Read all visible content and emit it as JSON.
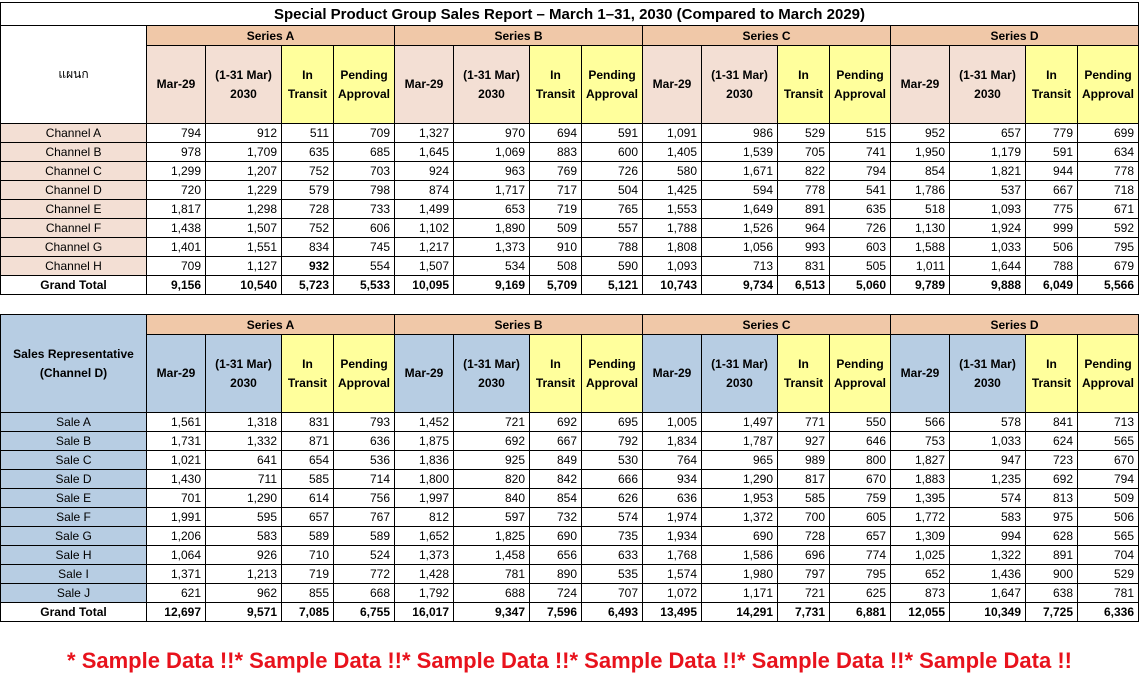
{
  "title": "Special Product Group Sales Report – March 1–31, 2030 (Compared to March 2029)",
  "series": [
    "Series A",
    "Series B",
    "Series C",
    "Series D"
  ],
  "sub_headers": [
    "Mar-29",
    "(1-31 Mar) 2030",
    "In Transit",
    "Pending Approval"
  ],
  "table1": {
    "corner_label": "แผนก",
    "rows": [
      {
        "label": "Channel A",
        "values": [
          "794",
          "912",
          "511",
          "709",
          "1,327",
          "970",
          "694",
          "591",
          "1,091",
          "986",
          "529",
          "515",
          "952",
          "657",
          "779",
          "699"
        ]
      },
      {
        "label": "Channel B",
        "values": [
          "978",
          "1,709",
          "635",
          "685",
          "1,645",
          "1,069",
          "883",
          "600",
          "1,405",
          "1,539",
          "705",
          "741",
          "1,950",
          "1,179",
          "591",
          "634"
        ]
      },
      {
        "label": "Channel C",
        "values": [
          "1,299",
          "1,207",
          "752",
          "703",
          "924",
          "963",
          "769",
          "726",
          "580",
          "1,671",
          "822",
          "794",
          "854",
          "1,821",
          "944",
          "778"
        ]
      },
      {
        "label": "Channel D",
        "values": [
          "720",
          "1,229",
          "579",
          "798",
          "874",
          "1,717",
          "717",
          "504",
          "1,425",
          "594",
          "778",
          "541",
          "1,786",
          "537",
          "667",
          "718"
        ]
      },
      {
        "label": "Channel E",
        "values": [
          "1,817",
          "1,298",
          "728",
          "733",
          "1,499",
          "653",
          "719",
          "765",
          "1,553",
          "1,649",
          "891",
          "635",
          "518",
          "1,093",
          "775",
          "671"
        ]
      },
      {
        "label": "Channel F",
        "values": [
          "1,438",
          "1,507",
          "752",
          "606",
          "1,102",
          "1,890",
          "509",
          "557",
          "1,788",
          "1,526",
          "964",
          "726",
          "1,130",
          "1,924",
          "999",
          "592"
        ]
      },
      {
        "label": "Channel G",
        "values": [
          "1,401",
          "1,551",
          "834",
          "745",
          "1,217",
          "1,373",
          "910",
          "788",
          "1,808",
          "1,056",
          "993",
          "603",
          "1,588",
          "1,033",
          "506",
          "795"
        ]
      },
      {
        "label": "Channel H",
        "values": [
          "709",
          "1,127",
          "932",
          "554",
          "1,507",
          "534",
          "508",
          "590",
          "1,093",
          "713",
          "831",
          "505",
          "1,011",
          "1,644",
          "788",
          "679"
        ]
      }
    ],
    "total": {
      "label": "Grand Total",
      "values": [
        "9,156",
        "10,540",
        "5,723",
        "5,533",
        "10,095",
        "9,169",
        "5,709",
        "5,121",
        "10,743",
        "9,734",
        "6,513",
        "5,060",
        "9,789",
        "9,888",
        "6,049",
        "5,566"
      ]
    }
  },
  "table2": {
    "corner_label": "Sales Representative (Channel D)",
    "rows": [
      {
        "label": "Sale A",
        "values": [
          "1,561",
          "1,318",
          "831",
          "793",
          "1,452",
          "721",
          "692",
          "695",
          "1,005",
          "1,497",
          "771",
          "550",
          "566",
          "578",
          "841",
          "713"
        ]
      },
      {
        "label": "Sale B",
        "values": [
          "1,731",
          "1,332",
          "871",
          "636",
          "1,875",
          "692",
          "667",
          "792",
          "1,834",
          "1,787",
          "927",
          "646",
          "753",
          "1,033",
          "624",
          "565"
        ]
      },
      {
        "label": "Sale C",
        "values": [
          "1,021",
          "641",
          "654",
          "536",
          "1,836",
          "925",
          "849",
          "530",
          "764",
          "965",
          "989",
          "800",
          "1,827",
          "947",
          "723",
          "670"
        ]
      },
      {
        "label": "Sale D",
        "values": [
          "1,430",
          "711",
          "585",
          "714",
          "1,800",
          "820",
          "842",
          "666",
          "934",
          "1,290",
          "817",
          "670",
          "1,883",
          "1,235",
          "692",
          "794"
        ]
      },
      {
        "label": "Sale E",
        "values": [
          "701",
          "1,290",
          "614",
          "756",
          "1,997",
          "840",
          "854",
          "626",
          "636",
          "1,953",
          "585",
          "759",
          "1,395",
          "574",
          "813",
          "509"
        ]
      },
      {
        "label": "Sale F",
        "values": [
          "1,991",
          "595",
          "657",
          "767",
          "812",
          "597",
          "732",
          "574",
          "1,974",
          "1,372",
          "700",
          "605",
          "1,772",
          "583",
          "975",
          "506"
        ]
      },
      {
        "label": "Sale G",
        "values": [
          "1,206",
          "583",
          "589",
          "589",
          "1,652",
          "1,825",
          "690",
          "735",
          "1,934",
          "690",
          "728",
          "657",
          "1,309",
          "994",
          "628",
          "565"
        ]
      },
      {
        "label": "Sale H",
        "values": [
          "1,064",
          "926",
          "710",
          "524",
          "1,373",
          "1,458",
          "656",
          "633",
          "1,768",
          "1,586",
          "696",
          "774",
          "1,025",
          "1,322",
          "891",
          "704"
        ]
      },
      {
        "label": "Sale I",
        "values": [
          "1,371",
          "1,213",
          "719",
          "772",
          "1,428",
          "781",
          "890",
          "535",
          "1,574",
          "1,980",
          "797",
          "795",
          "652",
          "1,436",
          "900",
          "529"
        ]
      },
      {
        "label": "Sale J",
        "values": [
          "621",
          "962",
          "855",
          "668",
          "1,792",
          "688",
          "724",
          "707",
          "1,072",
          "1,171",
          "721",
          "625",
          "873",
          "1,647",
          "638",
          "781"
        ]
      }
    ],
    "total": {
      "label": "Grand Total",
      "values": [
        "12,697",
        "9,571",
        "7,085",
        "6,755",
        "16,017",
        "9,347",
        "7,596",
        "6,493",
        "13,495",
        "14,291",
        "7,731",
        "6,881",
        "12,055",
        "10,349",
        "7,725",
        "6,336"
      ]
    }
  },
  "watermark": "* Sample Data !!* Sample Data !!* Sample Data !!* Sample Data !!* Sample Data !!* Sample Data !!",
  "colors": {
    "series_header": "#f0c8a8",
    "sub_header_1": "#f3dfd4",
    "sub_header_2": "#b7cde3",
    "highlight": "#ffff9c",
    "watermark": "#e8121c"
  }
}
